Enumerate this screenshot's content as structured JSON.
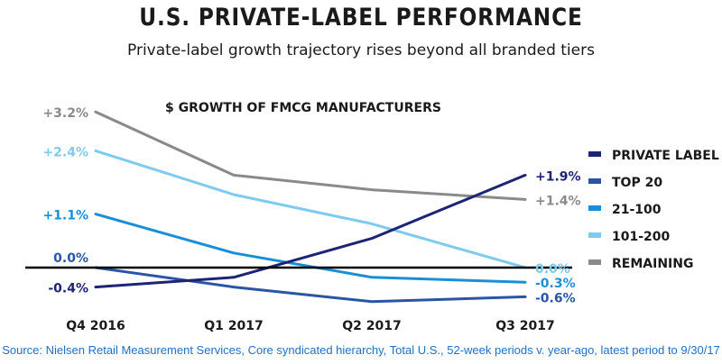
{
  "title": "U.S. PRIVATE-LABEL PERFORMANCE",
  "subtitle": "Private-label growth trajectory rises beyond all branded tiers",
  "footer": "Source: Nielsen Retail Measurement Services, Core syndicated hierarchy, Total U.S., 52-week periods v. year-ago, latest period to 9/30/17",
  "chart_data": {
    "type": "line",
    "title": "$ GROWTH OF FMCG MANUFACTURERS",
    "categories": [
      "Q4 2016",
      "Q1 2017",
      "Q2 2017",
      "Q3 2017"
    ],
    "ylim": [
      -1.0,
      3.6
    ],
    "zero_line": true,
    "legend_position": "right",
    "series": [
      {
        "name": "PRIVATE LABEL",
        "color": "#1c2473",
        "values": [
          -0.4,
          -0.2,
          0.6,
          1.9
        ],
        "start_label": "-0.4%",
        "end_label": "+1.9%"
      },
      {
        "name": "TOP 20",
        "color": "#2a55a4",
        "values": [
          0.0,
          -0.4,
          -0.7,
          -0.6
        ],
        "start_label": "",
        "end_label": "-0.6%"
      },
      {
        "name": "21-100",
        "color": "#1a8fd8",
        "values": [
          1.1,
          0.3,
          -0.2,
          -0.3
        ],
        "start_label": "+1.1%",
        "end_label": "-0.3%"
      },
      {
        "name": "101-200",
        "color": "#7ecbef",
        "values": [
          2.4,
          1.5,
          0.9,
          0.0
        ],
        "start_label": "+2.4%",
        "end_label": "0.0%"
      },
      {
        "name": "REMAINING",
        "color": "#8a8a8a",
        "values": [
          3.2,
          1.9,
          1.6,
          1.4
        ],
        "start_label": "+3.2%",
        "end_label": "+1.4%"
      }
    ],
    "extra_labels": [
      {
        "text": "0.0%",
        "color": "#2a55a4",
        "series": "TOP 20",
        "point": 0
      }
    ]
  }
}
